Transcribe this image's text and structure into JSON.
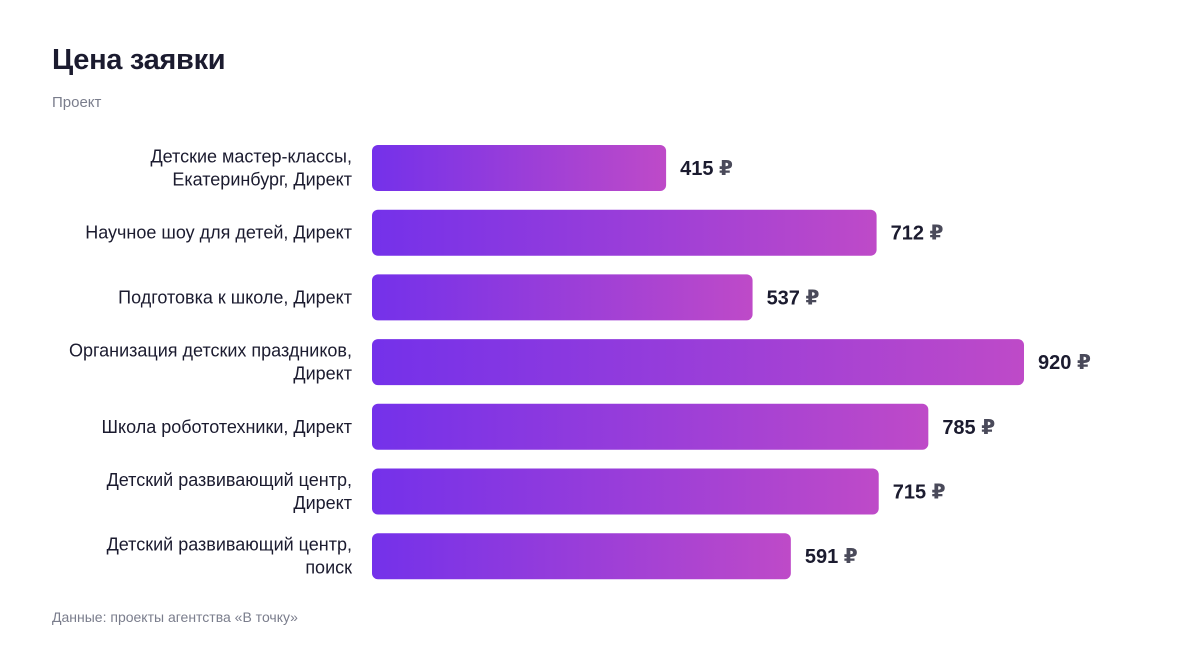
{
  "title": "Цена заявки",
  "subtitle": "Проект",
  "footer": "Данные: проекты агентства «В точку»",
  "colors": {
    "bar_start": "#7431ea",
    "bar_end": "#be4ac8",
    "text": "#1b1b2f",
    "muted": "#7a7d8c"
  },
  "chart_data": {
    "type": "bar",
    "orientation": "horizontal",
    "unit": "₽",
    "categories": [
      [
        "Детские мастер-классы,",
        "Екатеринбург, Директ"
      ],
      [
        "Научное шоу для детей, Директ"
      ],
      [
        "Подготовка к школе, Директ"
      ],
      [
        "Организация детских праздников,",
        "Директ"
      ],
      [
        "Школа робототехники, Директ"
      ],
      [
        "Детский развивающий центр,",
        "Директ"
      ],
      [
        "Детский развивающий центр,",
        "поиск"
      ]
    ],
    "values": [
      415,
      712,
      537,
      920,
      785,
      715,
      591
    ],
    "value_labels": [
      "415",
      "712",
      "537",
      "920",
      "785",
      "715",
      "591"
    ],
    "xlim": [
      0,
      920
    ],
    "grid": false,
    "legend": "none"
  }
}
